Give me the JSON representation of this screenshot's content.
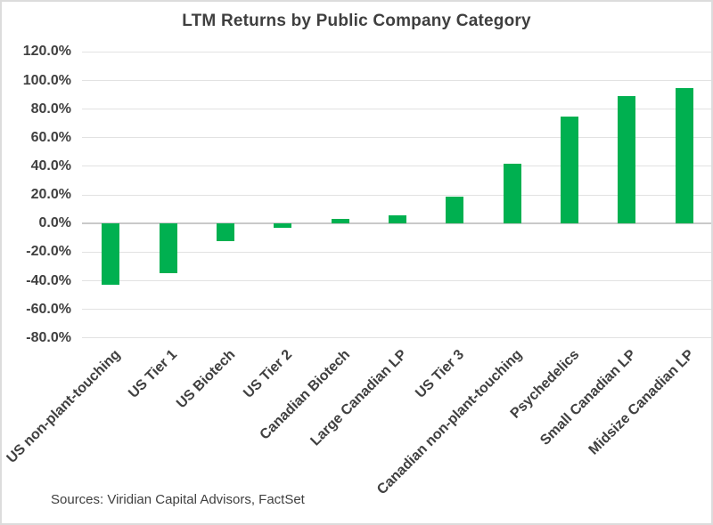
{
  "chart_data": {
    "type": "bar",
    "title": "LTM Returns by Public Company Category",
    "categories": [
      "US non-plant-touching",
      "US Tier 1",
      "US Biotech",
      "US Tier 2",
      "Canadian Biotech",
      "Large Canadian LP",
      "US Tier 3",
      "Canadian non-plant-touching",
      "Psychedelics",
      "Small Canadian LP",
      "Midsize Canadian LP"
    ],
    "values": [
      -43,
      -35,
      -12,
      -3,
      3,
      6,
      19,
      42,
      75,
      89,
      95
    ],
    "unit": "percent",
    "xlabel": "",
    "ylabel": "",
    "ylim": [
      -80,
      120
    ],
    "ytick_step": 20,
    "ytick_labels": [
      "120.0%",
      "100.0%",
      "80.0%",
      "60.0%",
      "40.0%",
      "20.0%",
      "0.0%",
      "-20.0%",
      "-40.0%",
      "-60.0%",
      "-80.0%"
    ],
    "grid": true,
    "legend": false,
    "bar_color": "#00B050",
    "gridline_color": "#e2e2e2",
    "zero_line_color": "#c9c9c9",
    "text_color": "#404040",
    "source": "Sources: Viridian Capital Advisors, FactSet"
  }
}
